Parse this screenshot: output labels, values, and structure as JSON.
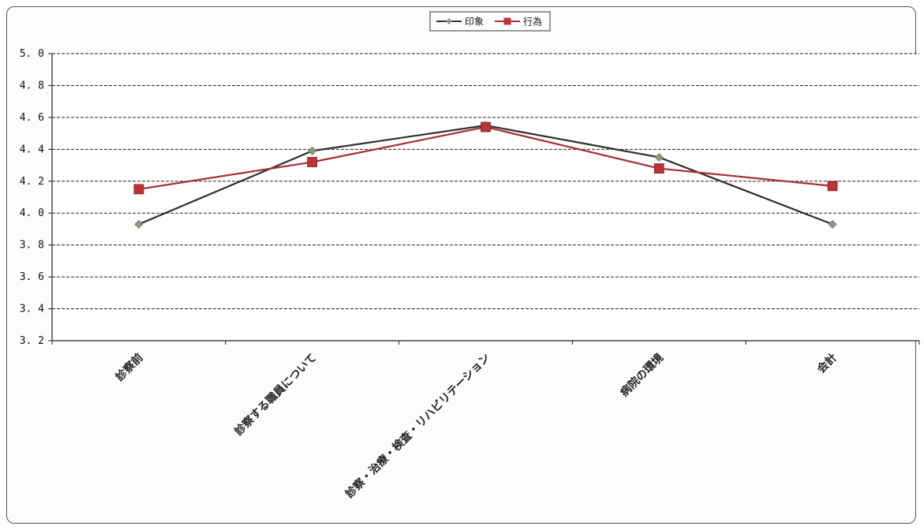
{
  "chart_data": {
    "type": "line",
    "categories": [
      "診察前",
      "診察する職員について",
      "診察・治療・検査・リハビリテーション",
      "病院の環境",
      "会計"
    ],
    "series": [
      {
        "name": "印象",
        "values": [
          3.93,
          4.39,
          4.55,
          4.35,
          3.93
        ],
        "color": "#8a9a7a",
        "marker": "diamond",
        "line_color": "#2e2e2e"
      },
      {
        "name": "行為",
        "values": [
          4.15,
          4.32,
          4.54,
          4.28,
          4.17
        ],
        "color": "#b8353a",
        "marker": "square",
        "line_color": "#a83036"
      }
    ],
    "ylim": [
      3.2,
      5.0
    ],
    "yticks": [
      "3.2",
      "3.4",
      "3.6",
      "3.8",
      "4.0",
      "4.2",
      "4.4",
      "4.6",
      "4.8",
      "5.0"
    ],
    "grid": true,
    "legend_position": "top-center",
    "title": "",
    "xlabel": "",
    "ylabel": ""
  }
}
